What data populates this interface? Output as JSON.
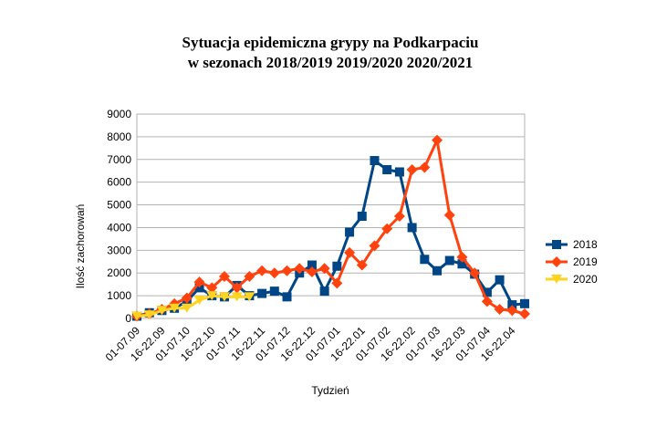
{
  "chart_data": {
    "type": "line",
    "title": [
      "Sytuacja epidemiczna grypy na Podkarpaciu",
      "w sezonach 2018/2019 2019/2020 2020/2021"
    ],
    "x_label": "Tydzień",
    "y_label": "Ilość zachorowań",
    "categories": [
      "01-07.09",
      null,
      "16-22.09",
      null,
      "01-07.10",
      null,
      "16-22.10",
      null,
      "01-07.11",
      null,
      "16-22.11",
      null,
      "01-07.12",
      null,
      "16-22.12",
      null,
      "01-07.01",
      null,
      "16-22.01",
      null,
      "01-07.02",
      null,
      "16-22.02",
      null,
      "01-07.03",
      null,
      "16-22.03",
      null,
      "01-07.04",
      null,
      "16-22.04",
      null
    ],
    "series": [
      {
        "name": "2018",
        "color": "#004586",
        "marker": "square",
        "values": [
          100,
          250,
          350,
          450,
          750,
          1350,
          1000,
          950,
          1450,
          1000,
          1100,
          1200,
          950,
          2000,
          2350,
          1200,
          2300,
          3800,
          4500,
          6950,
          6550,
          6450,
          4000,
          2600,
          2100,
          2550,
          2400,
          1950,
          1150,
          1700,
          600,
          650
        ]
      },
      {
        "name": "2019",
        "color": "#ff420e",
        "marker": "diamond",
        "values": [
          100,
          200,
          400,
          650,
          900,
          1600,
          1350,
          1850,
          1350,
          1850,
          2100,
          2000,
          2100,
          2200,
          2050,
          2200,
          1550,
          2900,
          2350,
          3200,
          3950,
          4500,
          6550,
          6650,
          7850,
          4550,
          2700,
          2000,
          750,
          400,
          350,
          200
        ]
      },
      {
        "name": "2020",
        "color": "#ffd320",
        "marker": "triangle",
        "values": [
          100,
          150,
          350,
          450,
          450,
          800,
          1000,
          950,
          950,
          950,
          null,
          null,
          null,
          null,
          null,
          null,
          null,
          null,
          null,
          null,
          null,
          null,
          null,
          null,
          null,
          null,
          null,
          null,
          null,
          null,
          null,
          null
        ]
      }
    ],
    "ylim": [
      0,
      9000
    ],
    "yticks": [
      0,
      1000,
      2000,
      3000,
      4000,
      5000,
      6000,
      7000,
      8000,
      9000
    ],
    "grid": true,
    "legend": "right"
  }
}
